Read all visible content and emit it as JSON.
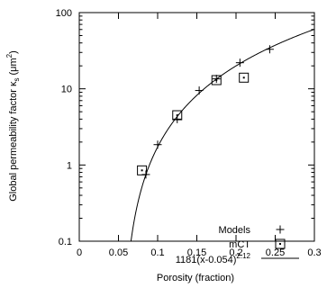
{
  "chart_data": {
    "type": "scatter",
    "title": "",
    "xlabel": "Porosity (fraction)",
    "ylabel": "Global permeability factor κ",
    "ylabel_subscript": "s",
    "ylabel_unit_prefix": "(μm",
    "ylabel_unit_exp": "2",
    "ylabel_unit_suffix": ")",
    "xlim": [
      0,
      0.3
    ],
    "ylim": [
      0.1,
      100
    ],
    "ylog": true,
    "grid": false,
    "legend_position": "bottom-right",
    "x_ticks": [
      0,
      0.05,
      0.1,
      0.15,
      0.2,
      0.25,
      0.3
    ],
    "x_tick_labels": [
      "0",
      "0.05",
      "0.1",
      "0.15",
      "0.2",
      "0.25",
      "0.3"
    ],
    "y_ticks": [
      0.1,
      1,
      10,
      100
    ],
    "y_tick_labels": [
      "0.1",
      "1",
      "10",
      "100"
    ],
    "series": [
      {
        "name": "Models",
        "marker": "plus",
        "x": [
          0.085,
          0.1,
          0.125,
          0.153,
          0.175,
          0.205,
          0.243
        ],
        "y": [
          0.75,
          1.85,
          4.0,
          9.5,
          13.5,
          22.0,
          33.0
        ]
      },
      {
        "name": "mCT",
        "marker": "dotted-square",
        "x": [
          0.08,
          0.125,
          0.175,
          0.21
        ],
        "y": [
          0.85,
          4.5,
          13.0,
          14.0
        ]
      },
      {
        "name_base": "1181(x-0.054)",
        "name_exp": "2.12",
        "marker": "line",
        "formula": {
          "coefficient": 1181,
          "offset": 0.054,
          "exponent": 2.12
        }
      }
    ]
  }
}
